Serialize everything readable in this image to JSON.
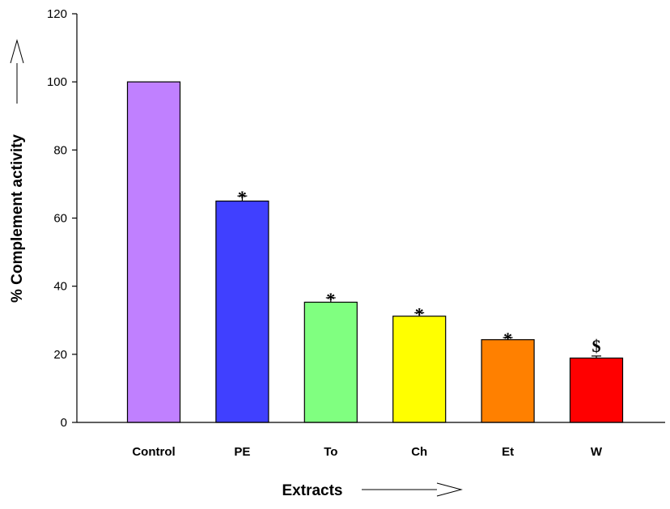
{
  "chart_data": {
    "type": "bar",
    "categories": [
      "Control",
      "PE",
      "To",
      "Ch",
      "Et",
      "W"
    ],
    "values": [
      100,
      65,
      35.3,
      31.2,
      24.3,
      18.9
    ],
    "errors": [
      0,
      1.5,
      1.3,
      1.0,
      0.6,
      0.6
    ],
    "significance": [
      "",
      "*",
      "*",
      "*",
      "*",
      "$"
    ],
    "colors": [
      "#c080ff",
      "#4040ff",
      "#80ff80",
      "#ffff00",
      "#ff8000",
      "#ff0000"
    ],
    "ylim": [
      0,
      120
    ],
    "yticks": [
      0,
      20,
      40,
      60,
      80,
      100,
      120
    ],
    "ylabel": "% Complement activity",
    "xlabel": "Extracts",
    "grid": false
  }
}
